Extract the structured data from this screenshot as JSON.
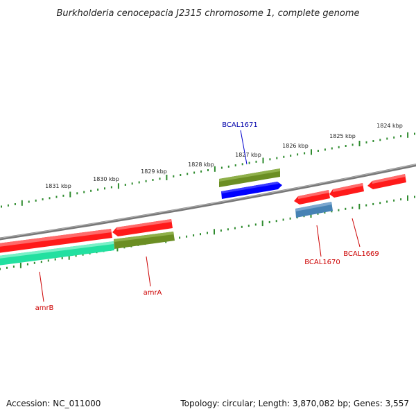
{
  "title": "Burkholderia cenocepacia J2315 chromosome 1, complete genome",
  "footer": {
    "accession": "Accession: NC_011000",
    "stats": "Topology: circular; Length: 3,870,082 bp; Genes: 3,557"
  },
  "colors": {
    "backbone": "#777777",
    "ruler": "#2e8b2e",
    "red_gene": "#ff1a1a",
    "olive_gene": "#6b8e23",
    "blue_gene": "#0000ff",
    "steelblue_gene": "#4682b4",
    "teal_gene": "#22e0a0",
    "label_red": "#cc0000",
    "label_blue": "#0000aa"
  },
  "ruler": {
    "outer_labels": [
      "1831 kbp",
      "1830 kbp",
      "1829 kbp",
      "1828 kbp",
      "1827 kbp",
      "1826 kbp",
      "1825 kbp",
      "1824 kbp"
    ]
  },
  "genes": {
    "amrB": "amrB",
    "amrA": "amrA",
    "BCAL1671": "BCAL1671",
    "BCAL1670": "BCAL1670",
    "BCAL1669": "BCAL1669"
  }
}
